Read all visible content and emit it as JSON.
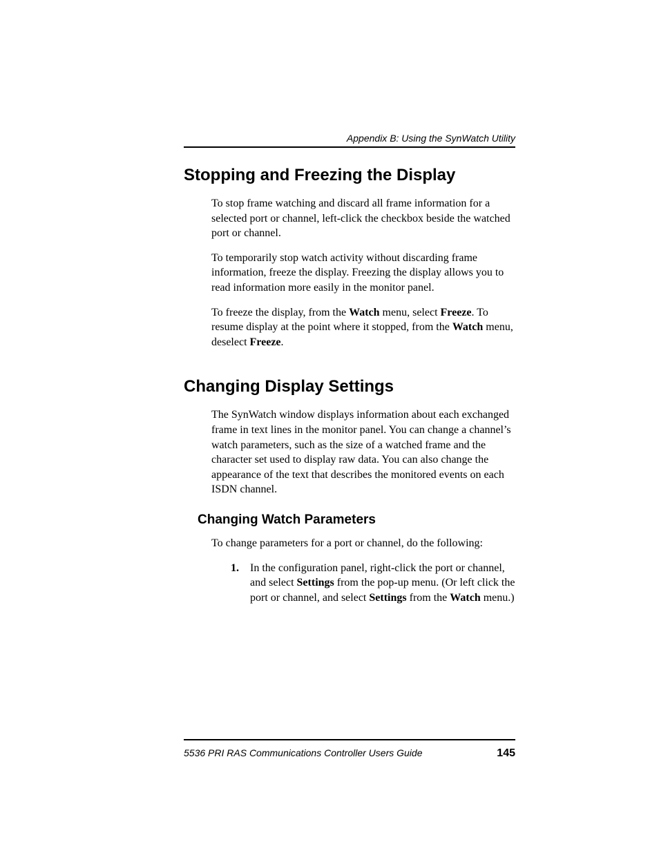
{
  "running_head": "Appendix B: Using the SynWatch Utility",
  "section1": {
    "title": "Stopping and Freezing the Display",
    "p1": "To stop frame watching and discard all frame information for a selected port or channel, left-click the checkbox beside the watched port or channel.",
    "p2": "To temporarily stop watch activity without discarding frame information, freeze the display. Freezing the display allows you to read information more easily in the monitor panel.",
    "p3_a": "To freeze the display, from the ",
    "p3_b": "Watch",
    "p3_c": " menu, select ",
    "p3_d": "Freeze",
    "p3_e": ". To resume display at the point where it stopped, from the ",
    "p3_f": "Watch",
    "p3_g": " menu, deselect ",
    "p3_h": "Freeze",
    "p3_i": "."
  },
  "section2": {
    "title": "Changing Display Settings",
    "p1": "The SynWatch window displays information about each exchanged frame in text lines in the monitor panel. You can change a channel’s watch parameters, such as the size of a watched frame and the character set used to display raw data. You can also change the appearance of the text that describes the monitored events on each ISDN channel.",
    "sub1": {
      "title": "Changing Watch Parameters",
      "p1": "To change parameters for a port or channel, do the following:",
      "step_num": "1.",
      "step_a": "In the configuration panel, right-click the port or channel, and select ",
      "step_b": "Settings",
      "step_c": " from the pop-up menu. (Or left click the port or channel, and select ",
      "step_d": "Settings",
      "step_e": " from the ",
      "step_f": "Watch",
      "step_g": " menu.)"
    }
  },
  "footer": {
    "title": "5536 PRI RAS Communications Controller Users Guide",
    "page": "145"
  }
}
